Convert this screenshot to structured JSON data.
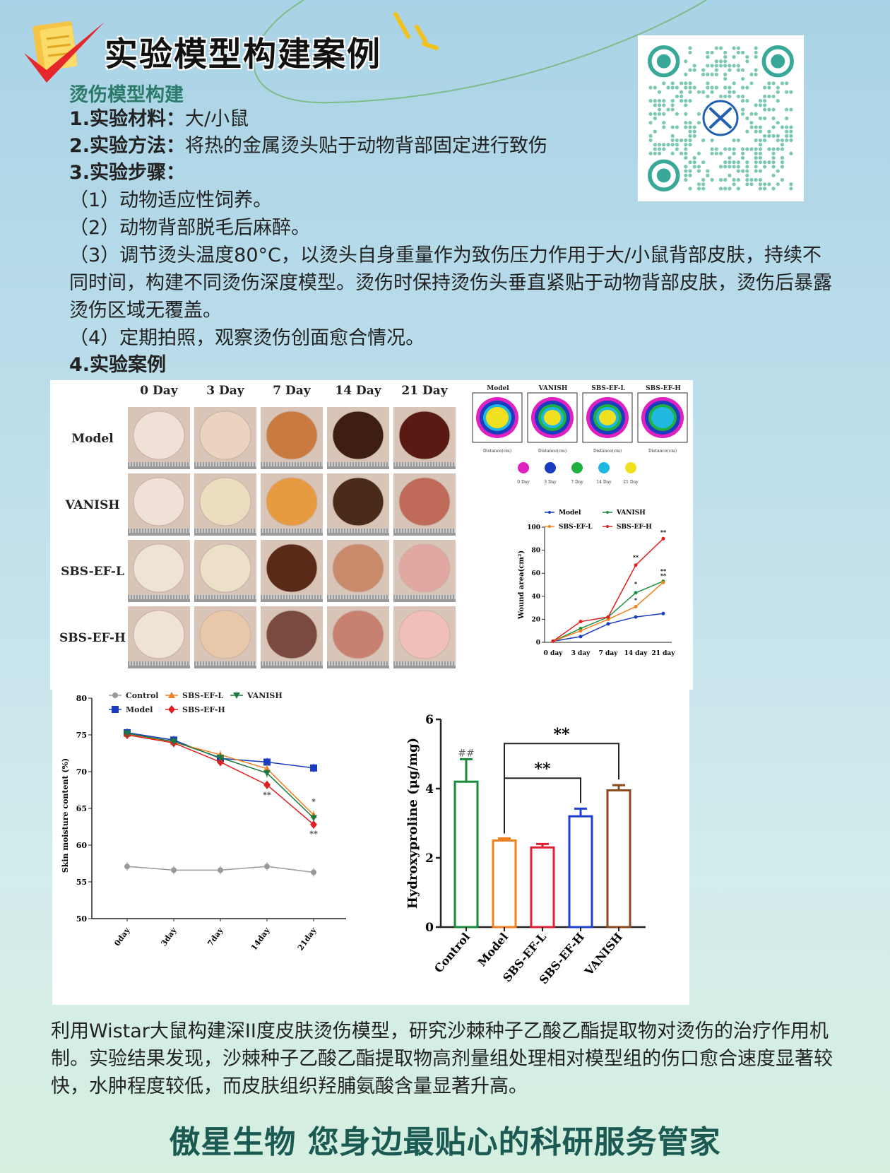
{
  "header": {
    "title": "实验模型构建案例"
  },
  "section": {
    "title": "烫伤模型构建"
  },
  "info": [
    {
      "label": "1.实验材料：",
      "value": "大/小鼠"
    },
    {
      "label": "2.实验方法：",
      "value": "将热的金属烫头贴于动物背部固定进行致伤"
    },
    {
      "label": "3.实验步骤：",
      "value": ""
    }
  ],
  "steps": [
    "（1）动物适应性饲养。",
    "（2）动物背部脱毛后麻醉。",
    "（3）调节烫头温度80°C，以烫头自身重量作为致伤压力作用于大/小鼠背部皮肤，持续不同时间，构建不同烫伤深度模型。烫伤时保持烫伤头垂直紧贴于动物背部皮肤，烫伤后暴露烫伤区域无覆盖。",
    "（4）定期拍照，观察烫伤创面愈合情况。"
  ],
  "case_label": "4.实验案例",
  "photo_grid": {
    "days": [
      "0 Day",
      "3 Day",
      "7 Day",
      "14 Day",
      "21 Day"
    ],
    "groups": [
      "Model",
      "VANISH",
      "SBS-EF-L",
      "SBS-EF-H"
    ]
  },
  "contour": {
    "panels": [
      "Model",
      "VANISH",
      "SBS-EF-L",
      "SBS-EF-H"
    ],
    "xlabel": "Distance(cm)",
    "legend": [
      {
        "label": "0 Day",
        "color": "#e020c0"
      },
      {
        "label": "3 Day",
        "color": "#1a3cc0"
      },
      {
        "label": "7 Day",
        "color": "#20b040"
      },
      {
        "label": "14 Day",
        "color": "#20b8e0"
      },
      {
        "label": "21 Day",
        "color": "#f0e020"
      }
    ]
  },
  "chart_data": [
    {
      "type": "line",
      "ylabel": "Wound area(cm²)",
      "categories": [
        "0 day",
        "3 day",
        "7 day",
        "14 day",
        "21 day"
      ],
      "ylim": [
        0,
        100
      ],
      "yticks": [
        0,
        20,
        40,
        60,
        80,
        100
      ],
      "legend_position": "top",
      "series": [
        {
          "name": "Model",
          "color": "#1a3cc0",
          "values": [
            1,
            5,
            16,
            22,
            25
          ]
        },
        {
          "name": "VANISH",
          "color": "#1a9040",
          "values": [
            1,
            12,
            22,
            43,
            53
          ]
        },
        {
          "name": "SBS-EF-L",
          "color": "#f08020",
          "values": [
            1,
            10,
            20,
            31,
            52
          ]
        },
        {
          "name": "SBS-EF-H",
          "color": "#e02020",
          "values": [
            1,
            18,
            22,
            67,
            90
          ]
        }
      ],
      "annotations": [
        "**",
        "**",
        "*",
        "*",
        "**",
        "**"
      ]
    },
    {
      "type": "line",
      "ylabel": "Skin moisture content (%)",
      "categories": [
        "0day",
        "3day",
        "7day",
        "14day",
        "21day"
      ],
      "ylim": [
        50,
        80
      ],
      "yticks": [
        50,
        55,
        60,
        65,
        70,
        75,
        80
      ],
      "legend_position": "top-left",
      "series": [
        {
          "name": "Control",
          "color": "#999999",
          "marker": "circle",
          "values": [
            57.1,
            56.6,
            56.6,
            57.1,
            56.3
          ]
        },
        {
          "name": "Model",
          "color": "#1a3cc0",
          "marker": "square",
          "values": [
            75.3,
            74.3,
            71.8,
            71.3,
            70.5
          ]
        },
        {
          "name": "SBS-EF-L",
          "color": "#f08020",
          "marker": "triangle",
          "values": [
            75.1,
            74.0,
            72.3,
            70.4,
            64.1
          ]
        },
        {
          "name": "SBS-EF-H",
          "color": "#e02020",
          "marker": "diamond",
          "values": [
            75.0,
            73.9,
            71.3,
            68.2,
            62.8
          ]
        },
        {
          "name": "VANISH",
          "color": "#1a7a40",
          "marker": "triangle-down",
          "values": [
            75.2,
            74.1,
            71.9,
            69.8,
            63.7
          ]
        }
      ],
      "annotations": [
        "**",
        "*",
        "**"
      ]
    },
    {
      "type": "bar",
      "ylabel": "Hydroxyproline (μg/mg)",
      "categories": [
        "Control",
        "Model",
        "SBS-EF-L",
        "SBS-EF-H",
        "VANISH"
      ],
      "values": [
        4.2,
        2.5,
        2.3,
        3.2,
        3.95
      ],
      "errors": [
        0.65,
        0.06,
        0.1,
        0.22,
        0.15
      ],
      "colors": [
        "#1a8a3a",
        "#f08020",
        "#e02030",
        "#2040d0",
        "#8a4a20"
      ],
      "ylim": [
        0,
        6
      ],
      "yticks": [
        0,
        2,
        4,
        6
      ],
      "annotations": [
        "##",
        "**",
        "**"
      ]
    }
  ],
  "summary": "利用Wistar大鼠构建深II度皮肤烫伤模型，研究沙棘种子乙酸乙酯提取物对烫伤的治疗作用机制。实验结果发现，沙棘种子乙酸乙酯提取物高剂量组处理相对模型组的伤口愈合速度显著较快，水肿程度较低，而皮肤组织羟脯氨酸含量显著升高。",
  "slogan": "傲星生物 您身边最贴心的科研服务管家"
}
